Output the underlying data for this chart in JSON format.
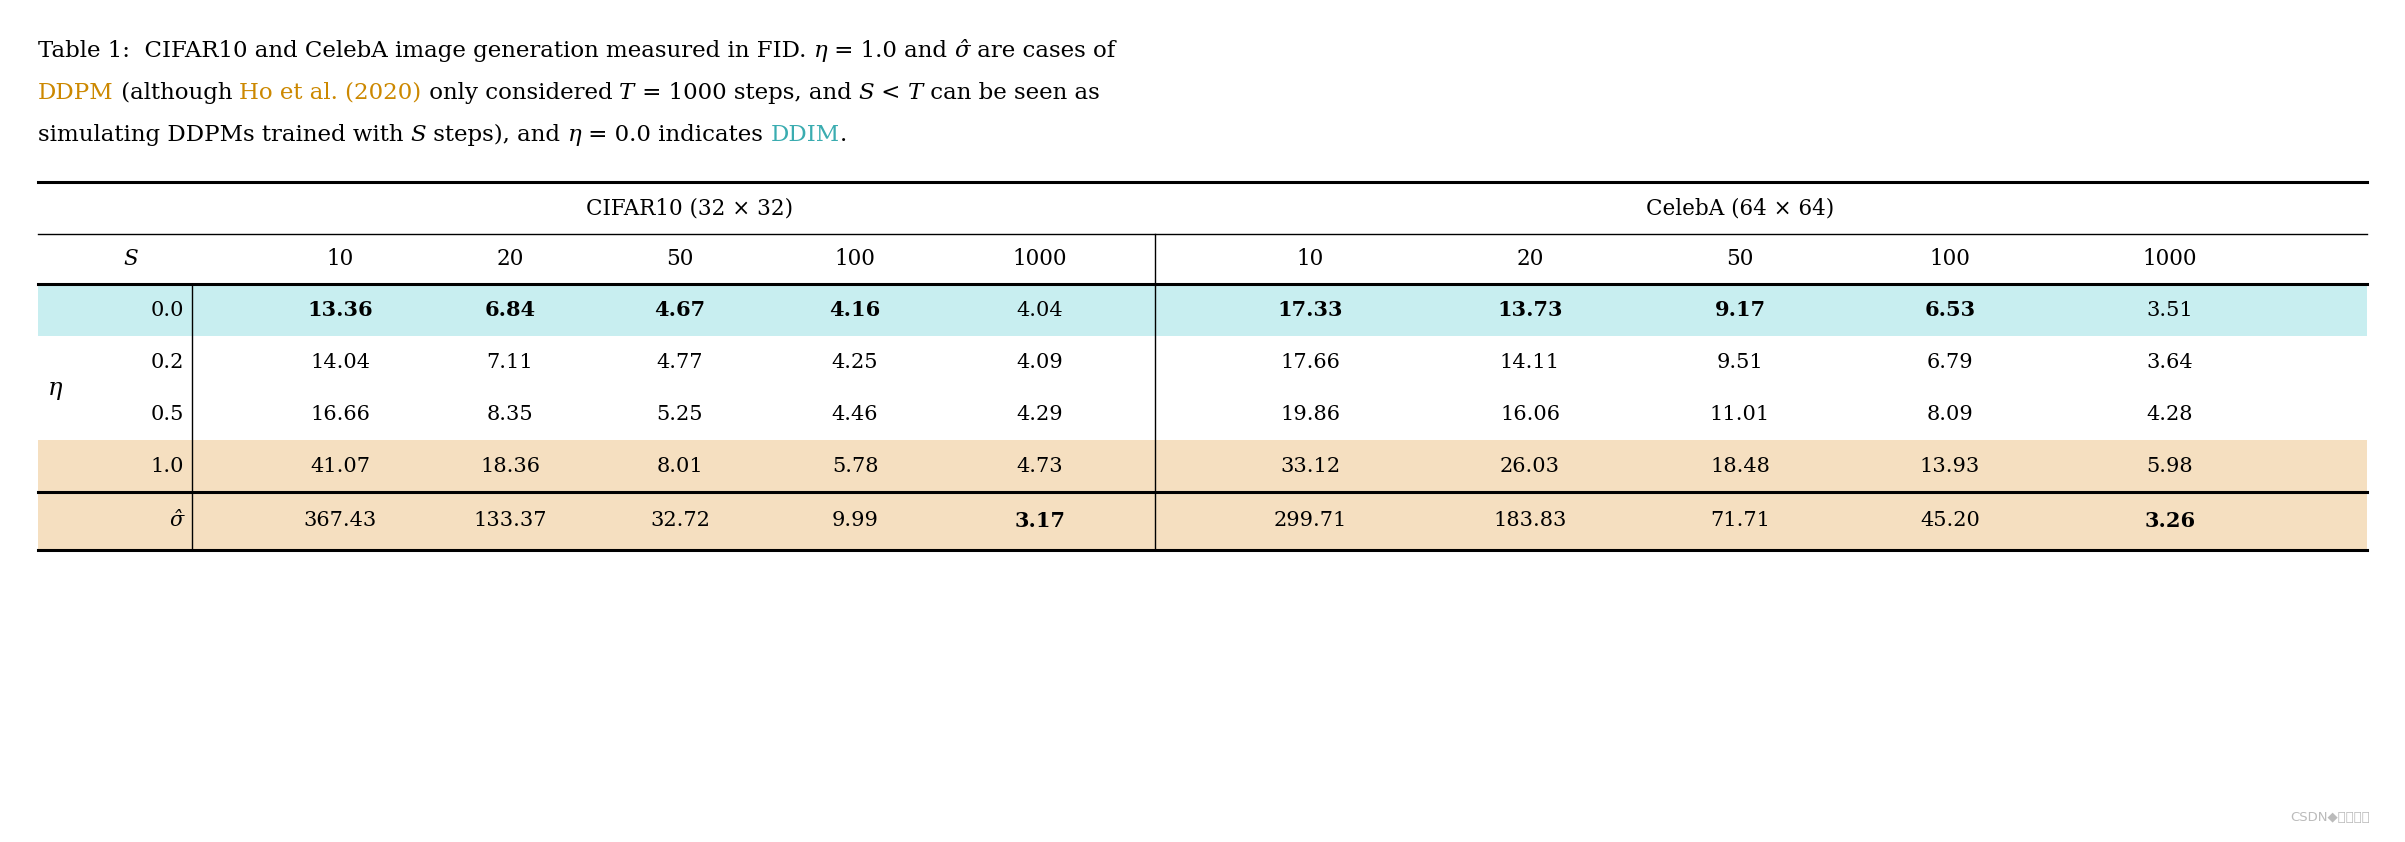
{
  "col_headers_cifar": "CIFAR10 (32 × 32)",
  "col_headers_celeba": "CelebA (64 × 64)",
  "s_values": [
    "10",
    "20",
    "50",
    "100",
    "1000"
  ],
  "eta_values": [
    "0.0",
    "0.2",
    "0.5",
    "1.0"
  ],
  "sigma_label": "σ̂",
  "cifar_data": {
    "0.0": [
      "13.36",
      "6.84",
      "4.67",
      "4.16",
      "4.04"
    ],
    "0.2": [
      "14.04",
      "7.11",
      "4.77",
      "4.25",
      "4.09"
    ],
    "0.5": [
      "16.66",
      "8.35",
      "5.25",
      "4.46",
      "4.29"
    ],
    "1.0": [
      "41.07",
      "18.36",
      "8.01",
      "5.78",
      "4.73"
    ]
  },
  "celeba_data": {
    "0.0": [
      "17.33",
      "13.73",
      "9.17",
      "6.53",
      "3.51"
    ],
    "0.2": [
      "17.66",
      "14.11",
      "9.51",
      "6.79",
      "3.64"
    ],
    "0.5": [
      "19.86",
      "16.06",
      "11.01",
      "8.09",
      "4.28"
    ],
    "1.0": [
      "33.12",
      "26.03",
      "18.48",
      "13.93",
      "5.98"
    ]
  },
  "sigma_cifar": [
    "367.43",
    "133.37",
    "32.72",
    "9.99",
    "3.17"
  ],
  "sigma_celeba": [
    "299.71",
    "183.83",
    "71.71",
    "45.20",
    "3.26"
  ],
  "row0_bg": "#c8eef0",
  "row_ddpm_bg": "#f5dfc0",
  "orange_color": "#cc8800",
  "cyan_color": "#3aacb0",
  "bg_color": "#ffffff",
  "watermark": "CSDN◆到幕人生",
  "watermark_color": "#bbbbbb",
  "caption_line1": [
    [
      "Table 1:  CIFAR10 and CelebA image generation measured in FID. ",
      "black",
      false,
      false
    ],
    [
      "η",
      "black",
      false,
      true
    ],
    [
      " = 1.0 and ",
      "black",
      false,
      false
    ],
    [
      "σ̂",
      "black",
      false,
      true
    ],
    [
      " are cases of",
      "black",
      false,
      false
    ]
  ],
  "caption_line2": [
    [
      "DDPM",
      "#cc8800",
      false,
      false
    ],
    [
      " (although ",
      "black",
      false,
      false
    ],
    [
      "Ho et al. (2020)",
      "#cc8800",
      false,
      false
    ],
    [
      " only considered ",
      "black",
      false,
      false
    ],
    [
      "T",
      "black",
      false,
      true
    ],
    [
      " = 1000 steps, and ",
      "black",
      false,
      false
    ],
    [
      "S",
      "black",
      false,
      true
    ],
    [
      " < ",
      "black",
      false,
      false
    ],
    [
      "T",
      "black",
      false,
      true
    ],
    [
      " can be seen as",
      "black",
      false,
      false
    ]
  ],
  "caption_line3": [
    [
      "simulating DDPMs trained with ",
      "black",
      false,
      false
    ],
    [
      "S",
      "black",
      false,
      true
    ],
    [
      " steps), and ",
      "black",
      false,
      false
    ],
    [
      "η",
      "black",
      false,
      true
    ],
    [
      " = 0.0 indicates ",
      "black",
      false,
      false
    ],
    [
      "DDIM",
      "#3aacb0",
      false,
      false
    ],
    [
      ".",
      "black",
      false,
      false
    ]
  ]
}
